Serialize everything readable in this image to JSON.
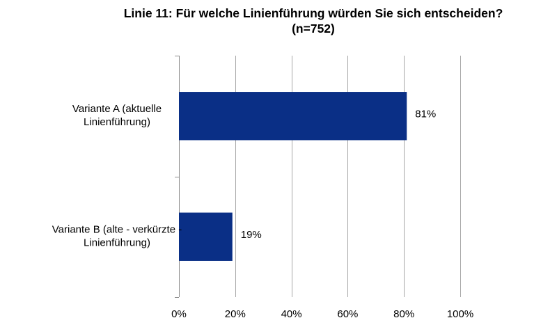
{
  "chart_data": {
    "type": "bar",
    "orientation": "horizontal",
    "title_lines": [
      "Linie 11: Für welche Linienführung würden Sie sich entscheiden?",
      "(n=752)"
    ],
    "categories": [
      [
        "Variante A (aktuelle",
        "Linienführung)"
      ],
      [
        "Variante B (alte - verkürzte -",
        "Linienführung)"
      ]
    ],
    "values": [
      81,
      19
    ],
    "data_labels": [
      "81%",
      "19%"
    ],
    "xlim": [
      0,
      100
    ],
    "x_ticks": [
      0,
      20,
      40,
      60,
      80,
      100
    ],
    "x_tick_labels": [
      "0%",
      "20%",
      "40%",
      "60%",
      "80%",
      "100%"
    ],
    "xlabel": "",
    "ylabel": "",
    "grid": "vertical",
    "bar_color": "#0a2f86",
    "grid_color": "#a6a6a6",
    "axis_color": "#8c8c8c"
  }
}
